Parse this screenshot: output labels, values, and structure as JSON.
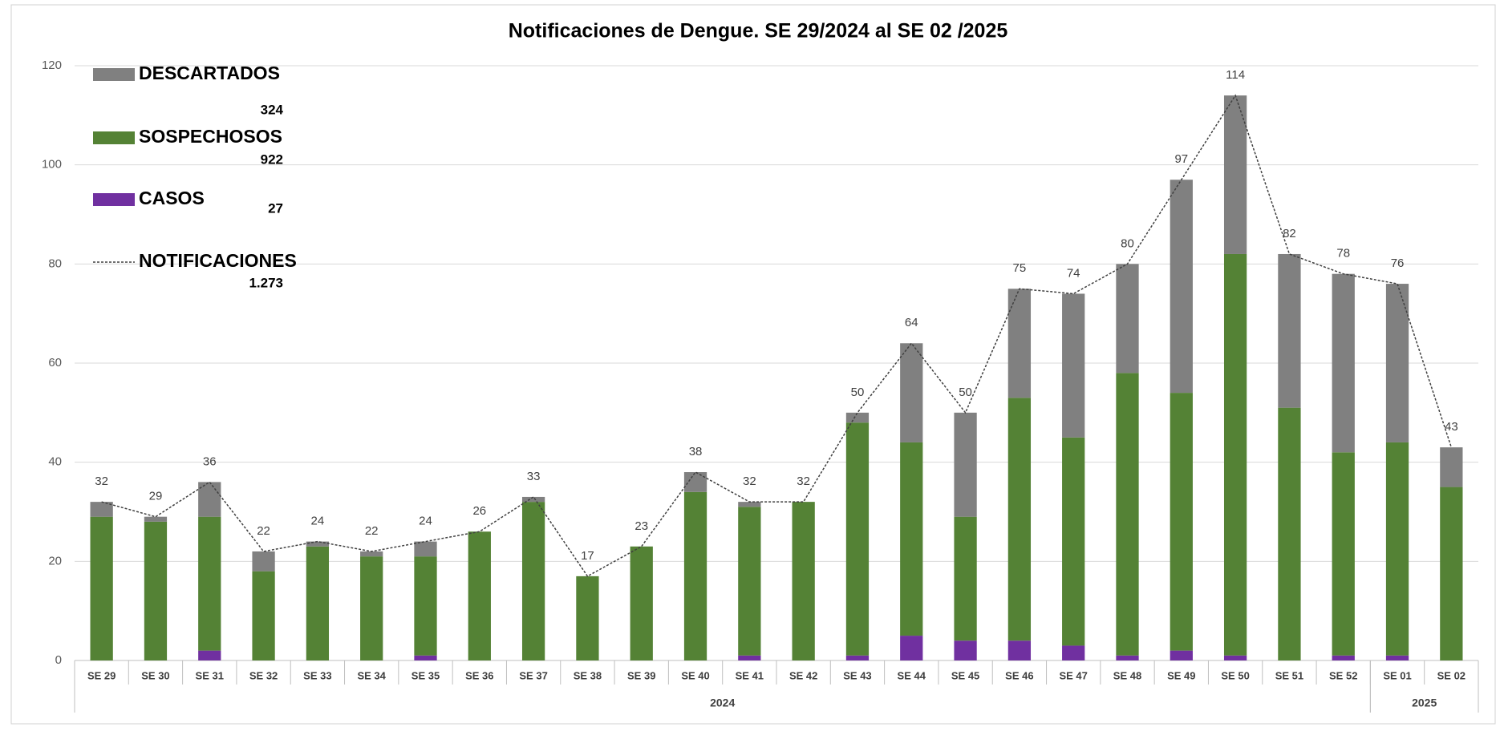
{
  "chart_data": {
    "type": "bar",
    "title": "Notificaciones de Dengue. SE 29/2024 al SE 02 /2025",
    "categories": [
      "SE 29",
      "SE 30",
      "SE 31",
      "SE 32",
      "SE 33",
      "SE 34",
      "SE 35",
      "SE 36",
      "SE 37",
      "SE 38",
      "SE 39",
      "SE 40",
      "SE 41",
      "SE 42",
      "SE 43",
      "SE 44",
      "SE 45",
      "SE 46",
      "SE 47",
      "SE 48",
      "SE 49",
      "SE 50",
      "SE 51",
      "SE 52",
      "SE 01",
      "SE 02"
    ],
    "groups": [
      {
        "label": "2024",
        "count": 24
      },
      {
        "label": "2025",
        "count": 2
      }
    ],
    "series": [
      {
        "name": "DESCARTADOS",
        "type": "bar",
        "color": "#808080",
        "total": 324,
        "values": [
          3,
          1,
          7,
          4,
          1,
          1,
          3,
          0,
          1,
          0,
          0,
          4,
          1,
          0,
          2,
          20,
          21,
          22,
          29,
          22,
          43,
          32,
          31,
          36,
          32,
          8
        ]
      },
      {
        "name": "SOSPECHOSOS",
        "type": "bar",
        "color": "#548235",
        "total": 922,
        "values": [
          29,
          28,
          27,
          18,
          23,
          21,
          20,
          26,
          32,
          17,
          23,
          34,
          30,
          32,
          47,
          39,
          25,
          49,
          42,
          57,
          52,
          81,
          51,
          41,
          43,
          35
        ]
      },
      {
        "name": "CASOS",
        "type": "bar",
        "color": "#7030a0",
        "total": 27,
        "values": [
          0,
          0,
          2,
          0,
          0,
          0,
          1,
          0,
          0,
          0,
          0,
          0,
          1,
          0,
          1,
          5,
          4,
          4,
          3,
          1,
          2,
          1,
          0,
          1,
          1,
          0
        ]
      },
      {
        "name": "NOTIFICACIONES",
        "type": "line",
        "color": "#404040",
        "total": {
          "value": 1273,
          "label": "1.273"
        },
        "values": [
          32,
          29,
          36,
          22,
          24,
          22,
          24,
          26,
          33,
          17,
          23,
          38,
          32,
          32,
          50,
          64,
          50,
          75,
          74,
          80,
          97,
          114,
          82,
          78,
          76,
          43
        ]
      }
    ],
    "ylim": [
      0,
      120
    ],
    "yticks": [
      0,
      20,
      40,
      60,
      80,
      100,
      120
    ],
    "grid": true,
    "legend": "top-left"
  }
}
